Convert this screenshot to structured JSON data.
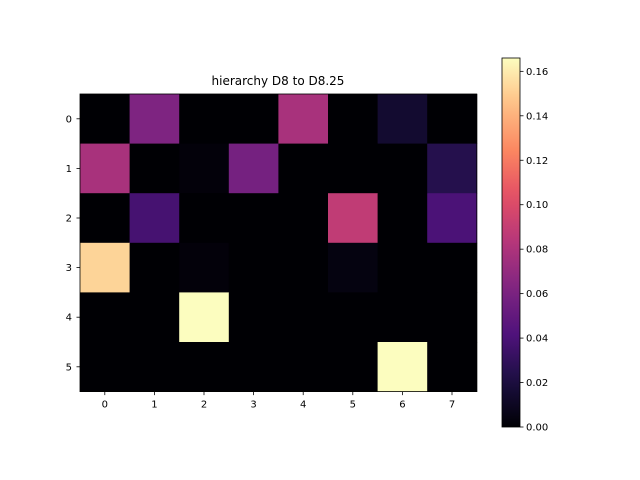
{
  "chart_data": {
    "type": "heatmap",
    "title": "hierarchy D8 to D8.25",
    "xlabel": "",
    "ylabel": "",
    "x_ticks": [
      "0",
      "1",
      "2",
      "3",
      "4",
      "5",
      "6",
      "7"
    ],
    "y_ticks": [
      "0",
      "1",
      "2",
      "3",
      "4",
      "5"
    ],
    "colormap": "magma",
    "vmin": 0.0,
    "vmax": 0.166,
    "colorbar_ticks": [
      "0.00",
      "0.02",
      "0.04",
      "0.06",
      "0.08",
      "0.10",
      "0.12",
      "0.14",
      "0.16"
    ],
    "colorbar_tick_values": [
      0.0,
      0.02,
      0.04,
      0.06,
      0.08,
      0.1,
      0.12,
      0.14,
      0.16
    ],
    "values": [
      [
        0.0,
        0.062,
        0.0,
        0.0,
        0.078,
        0.0,
        0.015,
        0.0
      ],
      [
        0.078,
        0.0,
        0.002,
        0.058,
        0.0,
        0.0,
        0.0,
        0.025
      ],
      [
        0.0,
        0.038,
        0.0,
        0.0,
        0.0,
        0.088,
        0.0,
        0.04
      ],
      [
        0.152,
        0.0,
        0.002,
        0.0,
        0.0,
        0.004,
        0.0,
        0.0
      ],
      [
        0.0,
        0.0,
        0.166,
        0.0,
        0.0,
        0.0,
        0.0,
        0.0
      ],
      [
        0.0,
        0.0,
        0.0,
        0.0,
        0.0,
        0.0,
        0.166,
        0.0
      ]
    ]
  }
}
